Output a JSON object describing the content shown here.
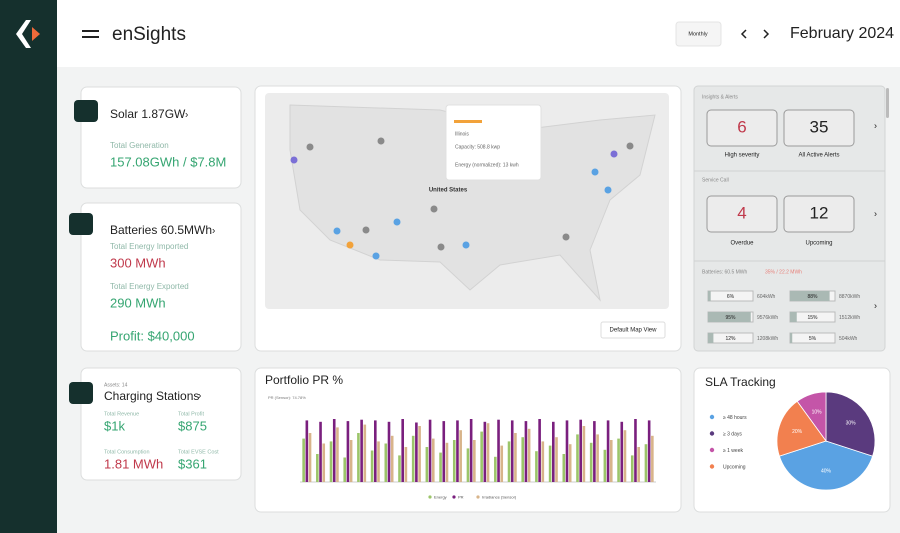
{
  "header": {
    "brand": "enSights",
    "period_button": "Monthly",
    "period": "February 2024"
  },
  "solar": {
    "title": "Solar 1.87GW",
    "label": "Total Generation",
    "value": "157.08GWh / $7.8M"
  },
  "batteries": {
    "title": "Batteries 60.5MWh",
    "imported_label": "Total Energy Imported",
    "imported": "300 MWh",
    "exported_label": "Total Energy Exported",
    "exported": "290 MWh",
    "profit": "Profit: $40,000"
  },
  "charging": {
    "assets": "Assets: 14",
    "title": "Charging Stations",
    "revenue_label": "Total Revenue",
    "revenue": "$1k",
    "profit_label": "Total Profit",
    "profit": "$875",
    "consumption_label": "Total Consumption",
    "consumption": "1.81 MWh",
    "cost_label": "Total EVSE Cost",
    "cost": "$361"
  },
  "map": {
    "country": "United States",
    "button": "Default Map View",
    "tooltip": {
      "site": "Illinois",
      "capacity": "Capacity: 508.8 kwp",
      "energy": "Energy (normalized): 13 kwh"
    }
  },
  "alerts": {
    "title": "Insights & Alerts",
    "high": "6",
    "high_label": "High severity",
    "all": "35",
    "all_label": "All Active Alerts",
    "service_title": "Service Call",
    "overdue": "4",
    "overdue_label": "Overdue",
    "upcoming": "12",
    "upcoming_label": "Upcoming",
    "battery_title": "Batteries: 60.5 MWh",
    "battery_note": "35% / 22.2 MWh",
    "battery_values": [
      6,
      88,
      95,
      15,
      12,
      5
    ],
    "battery_value_labels": [
      "6%",
      "88%",
      "95%",
      "15%",
      "12%",
      "5%"
    ],
    "battery_energy": [
      "604kWh",
      "8870kWh",
      "9576kWh",
      "1512kWh",
      "1208kWh",
      "504kWh"
    ]
  },
  "chart_data": [
    {
      "type": "bar",
      "title": "Portfolio PR %",
      "subtitle": "PR (Sensor): 74.78%",
      "categories": [
        null,
        null,
        null,
        null,
        null,
        null,
        null,
        null,
        null,
        null,
        null,
        null,
        null,
        null,
        null,
        null,
        null,
        null,
        null,
        null,
        null,
        null,
        null,
        null,
        null,
        null
      ],
      "ylim": [
        0,
        100
      ],
      "series": [
        {
          "name": "Energy",
          "color": "#9cc56a",
          "values": [
            62,
            40,
            58,
            35,
            70,
            45,
            55,
            38,
            66,
            50,
            42,
            60,
            48,
            72,
            36,
            58,
            64,
            44,
            52,
            40,
            68,
            56,
            46,
            62,
            38,
            54
          ]
        },
        {
          "name": "PR",
          "color": "#7a1f7e",
          "values": [
            88,
            86,
            90,
            87,
            89,
            88,
            86,
            90,
            85,
            89,
            87,
            88,
            90,
            86,
            89,
            88,
            87,
            90,
            86,
            88,
            89,
            87,
            88,
            86,
            90,
            88
          ]
        },
        {
          "name": "Irradiance (Sensor)",
          "color": "#d8b48a",
          "values": [
            70,
            55,
            78,
            60,
            82,
            58,
            66,
            50,
            80,
            62,
            56,
            74,
            60,
            84,
            52,
            70,
            76,
            58,
            64,
            54,
            80,
            68,
            60,
            74,
            50,
            66
          ]
        }
      ]
    },
    {
      "type": "pie",
      "title": "SLA Tracking",
      "categories": [
        "≥ 48 hours",
        "≥ 3 days",
        "≥ 1 week",
        "Upcoming"
      ],
      "values": [
        40,
        30,
        10,
        20
      ],
      "value_labels": [
        "40%",
        "30%",
        "10%",
        "20%"
      ],
      "colors": [
        "#5aa2e3",
        "#5a3a7e",
        "#c455a8",
        "#f2804f"
      ]
    }
  ]
}
